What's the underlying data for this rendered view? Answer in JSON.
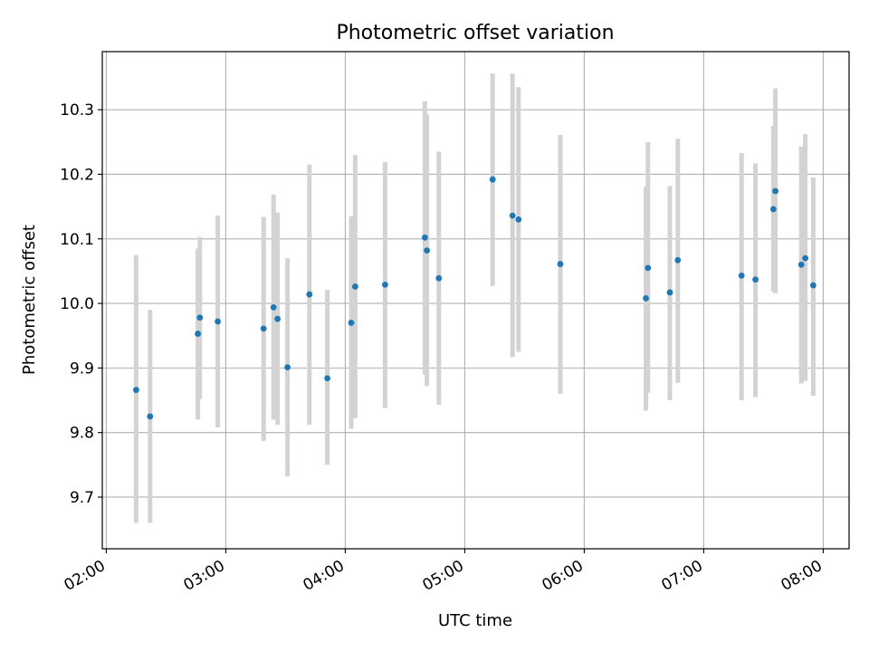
{
  "chart_data": {
    "type": "scatter",
    "title": "Photometric offset variation",
    "xlabel": "UTC time",
    "ylabel": "Photometric offset",
    "xlim": [
      "01:58",
      "08:13"
    ],
    "ylim": [
      9.62,
      10.39
    ],
    "grid": true,
    "colors": {
      "marker": "#1f77b4",
      "errorbar": "#d3d3d3",
      "grid": "#b0b0b0",
      "axes": "#000000"
    },
    "x_ticks": [
      "02:00",
      "03:00",
      "04:00",
      "05:00",
      "06:00",
      "07:00",
      "08:00"
    ],
    "y_ticks": [
      "9.7",
      "9.8",
      "9.9",
      "10.0",
      "10.1",
      "10.2",
      "10.3"
    ],
    "points": [
      {
        "time": "02:15",
        "y": 9.866,
        "err_low": 9.66,
        "err_high": 10.075
      },
      {
        "time": "02:22",
        "y": 9.825,
        "err_low": 9.66,
        "err_high": 9.99
      },
      {
        "time": "02:46",
        "y": 9.953,
        "err_low": 9.82,
        "err_high": 10.085
      },
      {
        "time": "02:47",
        "y": 9.978,
        "err_low": 9.852,
        "err_high": 10.103
      },
      {
        "time": "02:56",
        "y": 9.972,
        "err_low": 9.808,
        "err_high": 10.136
      },
      {
        "time": "03:19",
        "y": 9.961,
        "err_low": 9.787,
        "err_high": 10.134
      },
      {
        "time": "03:24",
        "y": 9.994,
        "err_low": 9.82,
        "err_high": 10.169
      },
      {
        "time": "03:26",
        "y": 9.976,
        "err_low": 9.812,
        "err_high": 10.141
      },
      {
        "time": "03:31",
        "y": 9.901,
        "err_low": 9.732,
        "err_high": 10.07
      },
      {
        "time": "03:42",
        "y": 10.014,
        "err_low": 9.812,
        "err_high": 10.215
      },
      {
        "time": "03:51",
        "y": 9.884,
        "err_low": 9.75,
        "err_high": 10.021
      },
      {
        "time": "04:03",
        "y": 9.97,
        "err_low": 9.806,
        "err_high": 10.135
      },
      {
        "time": "04:05",
        "y": 10.026,
        "err_low": 9.822,
        "err_high": 10.23
      },
      {
        "time": "04:20",
        "y": 10.029,
        "err_low": 9.838,
        "err_high": 10.219
      },
      {
        "time": "04:40",
        "y": 10.102,
        "err_low": 9.89,
        "err_high": 10.313
      },
      {
        "time": "04:41",
        "y": 10.082,
        "err_low": 9.872,
        "err_high": 10.293
      },
      {
        "time": "04:47",
        "y": 10.039,
        "err_low": 9.843,
        "err_high": 10.235
      },
      {
        "time": "05:14",
        "y": 10.192,
        "err_low": 10.027,
        "err_high": 10.356
      },
      {
        "time": "05:24",
        "y": 10.136,
        "err_low": 9.917,
        "err_high": 10.356
      },
      {
        "time": "05:27",
        "y": 10.13,
        "err_low": 9.925,
        "err_high": 10.335
      },
      {
        "time": "05:48",
        "y": 10.061,
        "err_low": 9.86,
        "err_high": 10.261
      },
      {
        "time": "06:31",
        "y": 10.008,
        "err_low": 9.834,
        "err_high": 10.181
      },
      {
        "time": "06:32",
        "y": 10.055,
        "err_low": 9.862,
        "err_high": 10.25
      },
      {
        "time": "06:43",
        "y": 10.017,
        "err_low": 9.85,
        "err_high": 10.182
      },
      {
        "time": "06:47",
        "y": 10.067,
        "err_low": 9.877,
        "err_high": 10.255
      },
      {
        "time": "07:19",
        "y": 10.043,
        "err_low": 9.85,
        "err_high": 10.233
      },
      {
        "time": "07:26",
        "y": 10.037,
        "err_low": 9.855,
        "err_high": 10.217
      },
      {
        "time": "07:35",
        "y": 10.146,
        "err_low": 10.018,
        "err_high": 10.275
      },
      {
        "time": "07:36",
        "y": 10.174,
        "err_low": 10.016,
        "err_high": 10.333
      },
      {
        "time": "07:49",
        "y": 10.06,
        "err_low": 9.876,
        "err_high": 10.243
      },
      {
        "time": "07:51",
        "y": 10.07,
        "err_low": 9.88,
        "err_high": 10.262
      },
      {
        "time": "07:55",
        "y": 10.028,
        "err_low": 9.857,
        "err_high": 10.195
      }
    ]
  }
}
